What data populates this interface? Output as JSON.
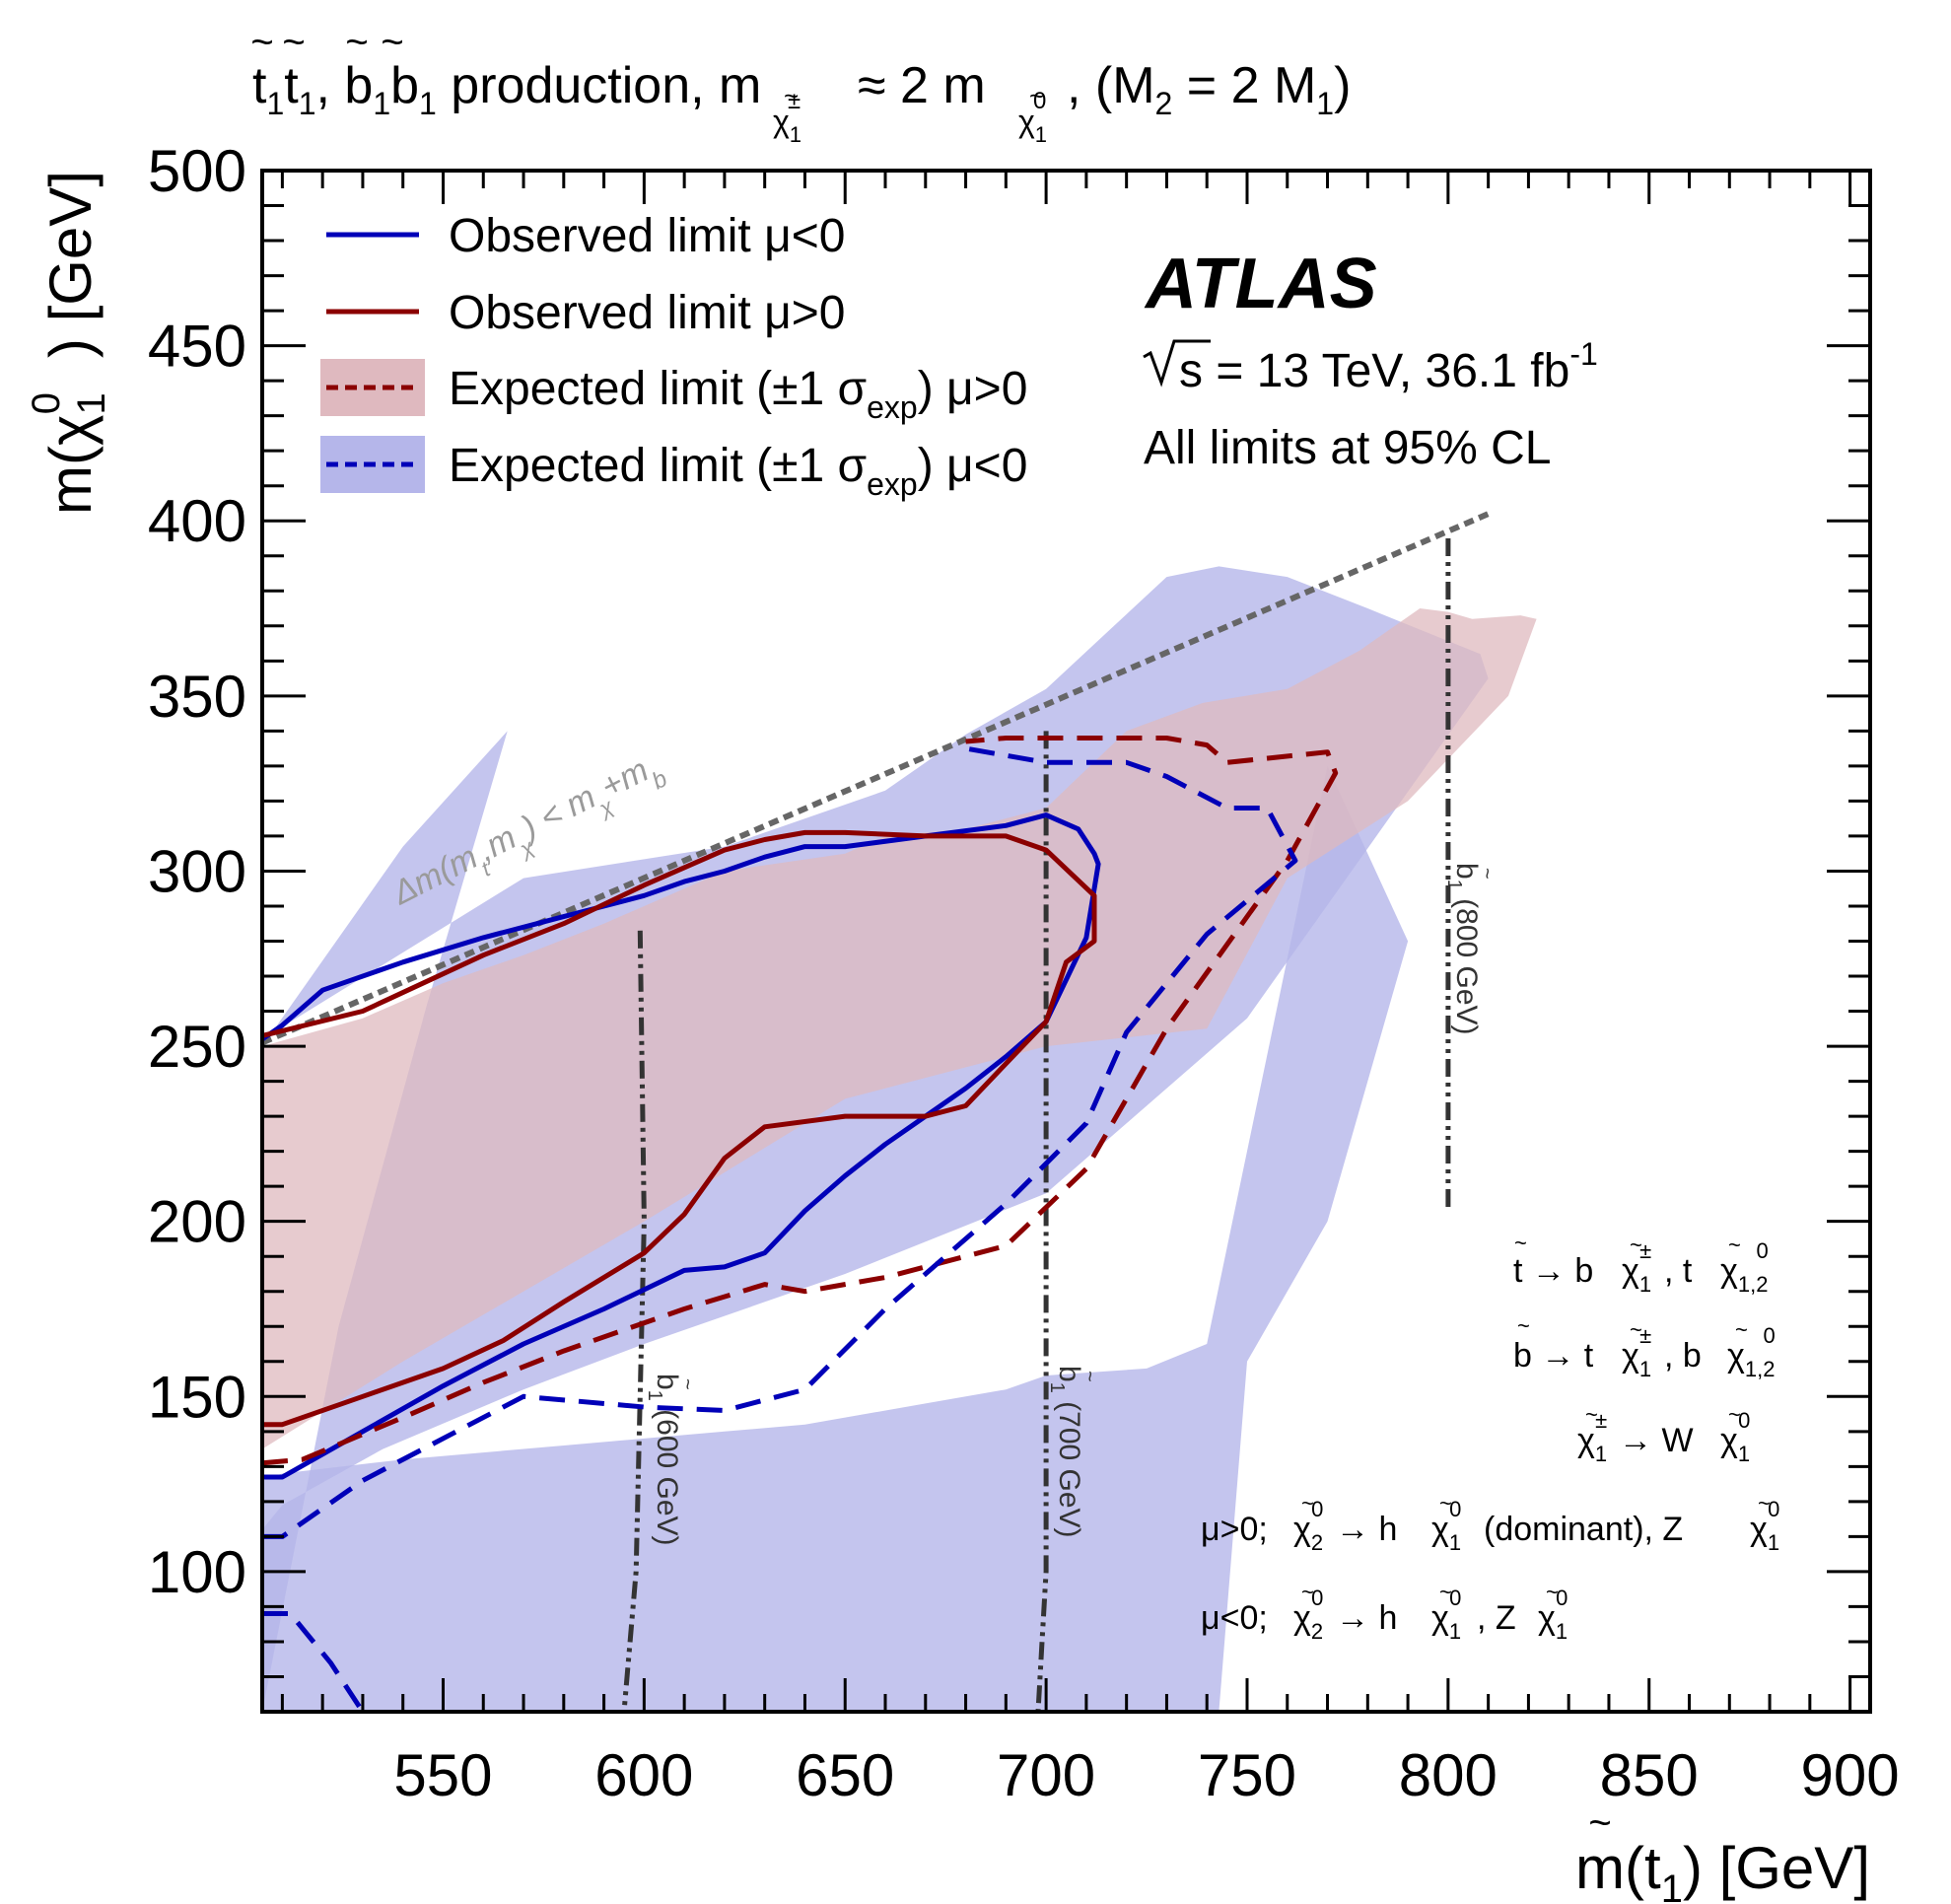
{
  "chart_data": {
    "type": "line",
    "title": "t̃₁t̃₁, b̃₁b̃₁ production, m(χ̃±₁) ≈ 2 m(χ̃⁰₁), (M₂ = 2 M₁)",
    "title_parts": {
      "main": "production, m",
      "approx": "≈ 2 m",
      "m2": "(M",
      "eq": "= 2 M",
      "close": ")",
      "stop": "t",
      "sbottom": "b",
      "chi": "χ",
      "tilde": "~",
      "sub1": "1",
      "sub2": "2",
      "pm": "±",
      "zero": "0",
      "comma": ","
    },
    "xlabel": "m(t̃₁) [GeV]",
    "xlabel_parts": {
      "pre": "m(",
      "var": "t",
      "sub": "1",
      "post": ") [GeV]"
    },
    "ylabel": "m(χ̃⁰₁) [GeV]",
    "ylabel_parts": {
      "pre": "m(",
      "var": "χ",
      "sub": "1",
      "sup": "0",
      "post": ") [GeV]"
    },
    "xlim": [
      505,
      905
    ],
    "ylim": [
      60,
      500
    ],
    "x_ticks": [
      550,
      600,
      650,
      700,
      750,
      800,
      850,
      900
    ],
    "y_ticks": [
      100,
      150,
      200,
      250,
      300,
      350,
      400,
      450,
      500
    ],
    "x_tick_labels": [
      "550",
      "600",
      "650",
      "700",
      "750",
      "800",
      "850",
      "900"
    ],
    "y_tick_labels": [
      "100",
      "150",
      "200",
      "250",
      "300",
      "350",
      "400",
      "450",
      "500"
    ],
    "atlas_label": {
      "name": "ATLAS",
      "energy_pre": "s = 13 TeV, 36.1 fb",
      "energy_sup": "-1",
      "cl": "All limits at 95% CL"
    },
    "legend": [
      {
        "label": "Observed limit",
        "mu": "μ<0",
        "style": "solid",
        "color": "#0000b8"
      },
      {
        "label": "Observed limit",
        "mu": "μ>0",
        "style": "solid",
        "color": "#8b0000"
      },
      {
        "label": "Expected limit (±1 σ",
        "sub": "exp",
        "close": ")",
        "mu": "μ>0",
        "style": "dashed",
        "color": "#8b0000",
        "band_color": "#dfb9bf"
      },
      {
        "label": "Expected limit (±1 σ",
        "sub": "exp",
        "close": ")",
        "mu": "μ<0",
        "style": "dashed",
        "color": "#0000b8",
        "band_color": "#b5b6ea"
      }
    ],
    "kinematic_boundary": {
      "label": "Δm(m(t̃₁), m(χ̃⁰₁)) < m(χ̃±₁) + m_b",
      "parts": {
        "pre": "Δm(m",
        "t": "t",
        "mid": ",m",
        "chi": "χ",
        "post": ") < m",
        "plus": "+m",
        "b": "b"
      },
      "x": [
        505,
        810
      ],
      "y": [
        251,
        402
      ]
    },
    "sbottom_lines": [
      {
        "label": "b̃₁ (600 GeV)",
        "sym": "b",
        "sub": "1",
        "text": "(600 GeV)",
        "x": [
          599,
          600,
          598,
          596.5,
          595
        ],
        "y": [
          283,
          200,
          100,
          80,
          60
        ]
      },
      {
        "label": "b̃₁ (700 GeV)",
        "sym": "b",
        "sub": "1",
        "text": "(700 GeV)",
        "x": [
          700,
          700,
          699,
          698
        ],
        "y": [
          340,
          100,
          80,
          60
        ]
      },
      {
        "label": "b̃₁ (800 GeV)",
        "sym": "b",
        "sub": "1",
        "text": "(800 GeV)",
        "x": [
          800,
          800
        ],
        "y": [
          395,
          203
        ]
      }
    ],
    "decays": [
      "t̃ → b χ̃±₁, t χ̃⁰₁,₂",
      "b̃ → t χ̃±₁, b χ̃⁰₁,₂",
      "χ̃±₁ → W χ̃⁰₁",
      "μ>0; χ̃⁰₂ → h χ̃⁰₁ (dominant), Z χ̃⁰₁",
      "μ<0; χ̃⁰₂ → h χ̃⁰₁, Z χ̃⁰₁"
    ],
    "decay_parts": {
      "arrow": "→",
      "b": "b",
      "t": "t",
      "W": "W",
      "h": "h",
      "Z": "Z",
      "mu_pos": "μ>0;",
      "mu_neg": "μ<0;",
      "dominant": "(dominant),",
      "sub12": "1,2"
    },
    "series": [
      {
        "name": "Expected band μ<0 (±1σ)",
        "kind": "band",
        "color": "#b5b6ea",
        "x": [
          505,
          505,
          510,
          535,
          570,
          600,
          650,
          700,
          750,
          810,
          808,
          795,
          780,
          760,
          743,
          730,
          700,
          680,
          660,
          620,
          570,
          505,
          505,
          540,
          566,
          546,
          524,
          505
        ],
        "y": [
          60,
          112,
          119,
          135,
          152,
          165,
          185,
          208,
          258,
          355,
          362,
          368,
          375,
          384,
          387,
          384,
          352,
          339,
          323,
          307,
          298,
          252,
          250,
          307,
          340,
          262,
          170,
          60
        ]
      },
      {
        "name": "Expected band μ<0 lower edge",
        "kind": "band_lower",
        "color": "#b5b6ea",
        "x": [
          505,
          530,
          560,
          600,
          640,
          670,
          700,
          740,
          770,
          795,
          810,
          808,
          795,
          780,
          760,
          743,
          750,
          770,
          790,
          770,
          740,
          725,
          700,
          690,
          670,
          640,
          620,
          600,
          580,
          560,
          540,
          525,
          510,
          505
        ],
        "y": [
          60,
          60,
          60,
          60,
          60,
          60,
          60,
          60,
          60,
          60,
          60,
          60,
          60,
          60,
          60,
          60,
          160,
          200,
          280,
          330,
          165,
          158,
          156,
          152,
          148,
          142,
          140,
          138,
          136,
          134,
          132,
          130,
          128,
          126
        ]
      },
      {
        "name": "Expected band μ>0 (±1σ)",
        "kind": "band",
        "color": "#dfb9bf",
        "x": [
          505,
          540,
          600,
          650,
          700,
          740,
          760,
          790,
          815,
          822,
          818,
          806,
          800,
          793,
          778,
          760,
          739,
          720,
          700,
          680,
          660,
          650,
          620,
          600,
          590,
          570,
          550,
          530,
          505
        ],
        "y": [
          135,
          160,
          200,
          235,
          250,
          255,
          298,
          320,
          350,
          372,
          373,
          372,
          374,
          375,
          363,
          352,
          348,
          340,
          318,
          312,
          310,
          305,
          300,
          290,
          285,
          276,
          268,
          258,
          250
        ]
      },
      {
        "name": "Observed limit μ<0",
        "kind": "observed",
        "style": "solid",
        "color": "#0000b8",
        "x": [
          505,
          510,
          530,
          550,
          570,
          590,
          610,
          620,
          630,
          640,
          650,
          660,
          670,
          680,
          690,
          700,
          710,
          713,
          712,
          708,
          700,
          690,
          670,
          650,
          640,
          630,
          620,
          610,
          600,
          590,
          580,
          560,
          540,
          520,
          510,
          505
        ],
        "y": [
          127,
          127,
          140,
          153,
          165,
          175,
          186,
          187,
          191,
          203,
          213,
          222,
          230,
          238,
          247,
          257,
          281,
          302,
          305,
          312,
          316,
          313,
          310,
          307,
          307,
          304,
          300,
          297,
          293,
          290,
          287,
          281,
          274,
          266,
          256,
          252
        ]
      },
      {
        "name": "Observed limit μ>0",
        "kind": "observed",
        "style": "solid",
        "color": "#8b0000",
        "x": [
          505,
          510,
          530,
          550,
          565,
          580,
          600,
          610,
          620,
          630,
          650,
          670,
          680,
          690,
          700,
          705,
          712,
          712,
          700,
          690,
          670,
          650,
          640,
          630,
          620,
          600,
          580,
          560,
          530,
          505
        ],
        "y": [
          142,
          142,
          150,
          158,
          166,
          177,
          191,
          202,
          218,
          227,
          230,
          230,
          233,
          245,
          257,
          274,
          280,
          293,
          306,
          310,
          310,
          311,
          311,
          309,
          306,
          296,
          285,
          276,
          260,
          253
        ]
      },
      {
        "name": "Expected limit μ>0",
        "kind": "expected",
        "style": "dashed",
        "color": "#8b0000",
        "x": [
          505,
          515,
          540,
          560,
          580,
          610,
          630,
          640,
          660,
          690,
          710,
          730,
          760,
          772,
          770,
          745,
          740,
          730,
          720,
          700,
          690,
          680
        ],
        "y": [
          131,
          132,
          144,
          154,
          163,
          175,
          182,
          180,
          184,
          193,
          215,
          255,
          303,
          328,
          334,
          331,
          336,
          338,
          338,
          338,
          338,
          337
        ]
      },
      {
        "name": "Expected limit μ<0",
        "kind": "expected",
        "style": "dashed",
        "color": "#0000b8",
        "x": [
          505,
          510,
          530,
          570,
          600,
          620,
          640,
          660,
          690,
          710,
          720,
          740,
          762,
          755,
          745,
          730,
          720,
          700,
          690,
          680
        ],
        "y": [
          110,
          110,
          126,
          150,
          147,
          146,
          152,
          175,
          205,
          228,
          254,
          282,
          303,
          318,
          318,
          327,
          331,
          331,
          333,
          335
        ]
      },
      {
        "name": "Expected limit μ<0 (low-mass island)",
        "kind": "expected",
        "style": "dashed",
        "color": "#0000b8",
        "x": [
          505,
          512,
          522,
          530
        ],
        "y": [
          88,
          88,
          74,
          60
        ]
      }
    ]
  }
}
